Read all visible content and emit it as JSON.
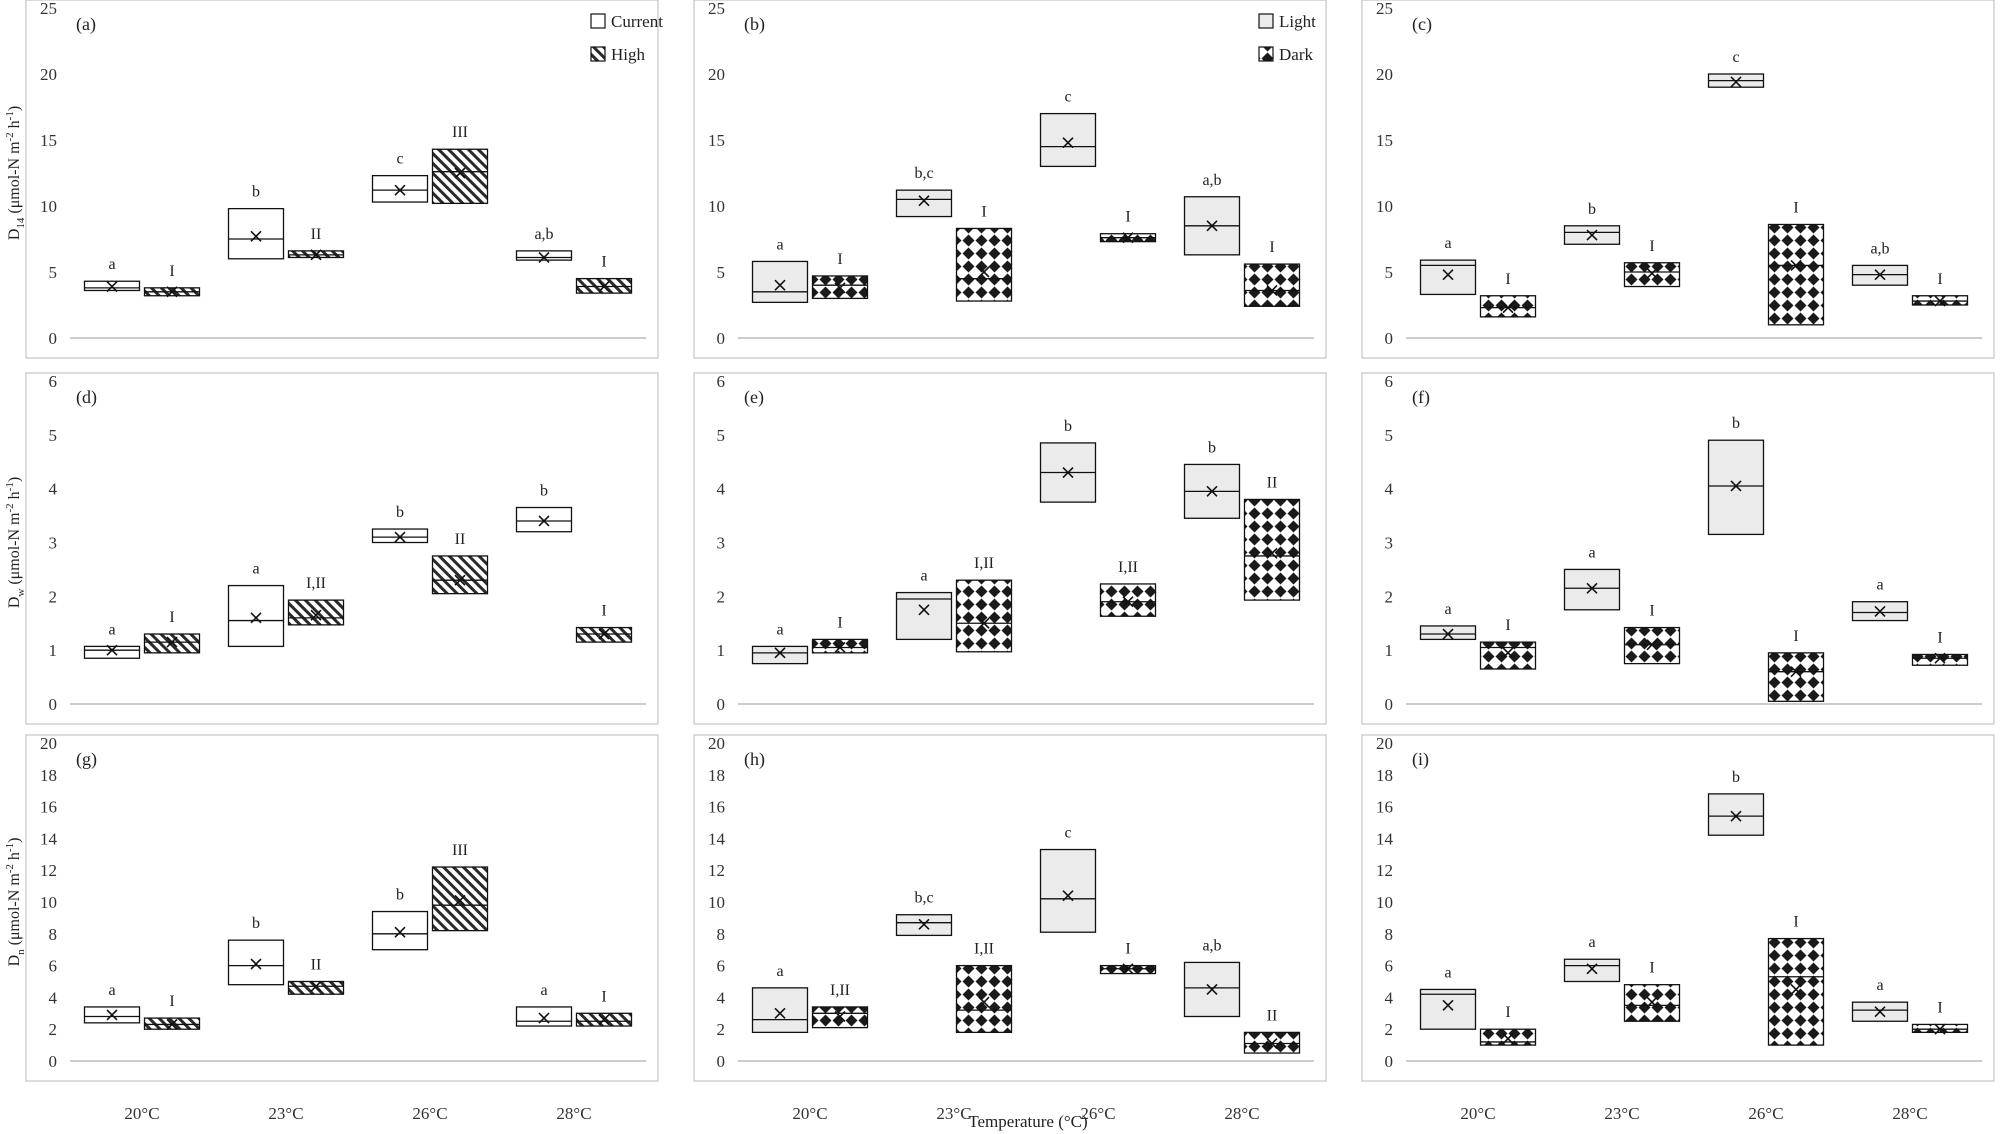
{
  "figure": {
    "xlabel": "Temperature (°C)",
    "categories": [
      "20°C",
      "23°C",
      "26°C",
      "28°C"
    ],
    "row_ylabels": [
      {
        "main": "D",
        "sub": "14",
        "rest": " (μmol-N m",
        "sup1": "-2",
        "rest2": " h",
        "sup2": "-1",
        "rest3": ")"
      },
      {
        "main": "D",
        "sub": "w",
        "rest": " (μmol-N m",
        "sup1": "-2",
        "rest2": " h",
        "sup2": "-1",
        "rest3": ")"
      },
      {
        "main": "D",
        "sub": "n",
        "rest": " (μmol-N m",
        "sup1": "-2",
        "rest2": " h",
        "sup2": "-1",
        "rest3": ")"
      }
    ],
    "legends": {
      "a": [
        {
          "label": "Current",
          "pattern": "plain"
        },
        {
          "label": "High",
          "pattern": "hatch"
        }
      ],
      "b": [
        {
          "label": "Light",
          "pattern": "light"
        },
        {
          "label": "Dark",
          "pattern": "dark"
        }
      ]
    }
  },
  "chart_data": [
    {
      "panel": "(a)",
      "type": "box",
      "ylim": [
        0,
        25
      ],
      "yticks": [
        0,
        5,
        10,
        15,
        20,
        25
      ],
      "series": [
        {
          "name": "Current",
          "pattern": "plain",
          "boxes": [
            {
              "q1": 3.6,
              "q3": 4.3,
              "med": 3.8,
              "mean": 3.9,
              "letter": "a"
            },
            {
              "q1": 6.0,
              "q3": 9.8,
              "med": 7.5,
              "mean": 7.7,
              "letter": "b"
            },
            {
              "q1": 10.3,
              "q3": 12.3,
              "med": 11.2,
              "mean": 11.2,
              "letter": "c"
            },
            {
              "q1": 5.9,
              "q3": 6.6,
              "med": 6.1,
              "mean": 6.1,
              "letter": "a,b"
            }
          ]
        },
        {
          "name": "High",
          "pattern": "hatch",
          "boxes": [
            {
              "q1": 3.2,
              "q3": 3.8,
              "med": 3.5,
              "mean": 3.5,
              "letter": "I"
            },
            {
              "q1": 6.1,
              "q3": 6.6,
              "med": 6.3,
              "mean": 6.3,
              "letter": "II"
            },
            {
              "q1": 10.2,
              "q3": 14.3,
              "med": 12.6,
              "mean": 12.5,
              "letter": "III"
            },
            {
              "q1": 3.4,
              "q3": 4.5,
              "med": 3.9,
              "mean": 3.9,
              "letter": "I"
            }
          ]
        }
      ]
    },
    {
      "panel": "(b)",
      "type": "box",
      "ylim": [
        0,
        25
      ],
      "yticks": [
        0,
        5,
        10,
        15,
        20,
        25
      ],
      "series": [
        {
          "name": "Light",
          "pattern": "light",
          "boxes": [
            {
              "q1": 2.7,
              "q3": 5.8,
              "med": 3.5,
              "mean": 4.0,
              "letter": "a"
            },
            {
              "q1": 9.2,
              "q3": 11.2,
              "med": 10.5,
              "mean": 10.4,
              "letter": "b,c"
            },
            {
              "q1": 13.0,
              "q3": 17.0,
              "med": 14.5,
              "mean": 14.8,
              "letter": "c"
            },
            {
              "q1": 6.3,
              "q3": 10.7,
              "med": 8.5,
              "mean": 8.5,
              "letter": "a,b"
            }
          ]
        },
        {
          "name": "Dark",
          "pattern": "dark",
          "boxes": [
            {
              "q1": 3.0,
              "q3": 4.7,
              "med": 4.0,
              "mean": 3.8,
              "letter": "I"
            },
            {
              "q1": 2.8,
              "q3": 8.3,
              "med": 4.5,
              "mean": 5.0,
              "letter": "I"
            },
            {
              "q1": 7.3,
              "q3": 7.9,
              "med": 7.6,
              "mean": 7.6,
              "letter": "I"
            },
            {
              "q1": 2.4,
              "q3": 5.6,
              "med": 3.6,
              "mean": 3.6,
              "letter": "I"
            }
          ]
        }
      ]
    },
    {
      "panel": "(c)",
      "type": "box",
      "ylim": [
        0,
        25
      ],
      "yticks": [
        0,
        5,
        10,
        15,
        20,
        25
      ],
      "series": [
        {
          "name": "Light",
          "pattern": "light",
          "boxes": [
            {
              "q1": 3.3,
              "q3": 5.9,
              "med": 5.5,
              "mean": 4.8,
              "letter": "a"
            },
            {
              "q1": 7.1,
              "q3": 8.5,
              "med": 8.0,
              "mean": 7.8,
              "letter": "b"
            },
            {
              "q1": 19.0,
              "q3": 20.0,
              "med": 19.5,
              "mean": 19.4,
              "letter": "c"
            },
            {
              "q1": 4.0,
              "q3": 5.5,
              "med": 4.8,
              "mean": 4.8,
              "letter": "a,b"
            }
          ]
        },
        {
          "name": "Dark",
          "pattern": "dark",
          "boxes": [
            {
              "q1": 1.6,
              "q3": 3.2,
              "med": 2.3,
              "mean": 2.3,
              "letter": "I"
            },
            {
              "q1": 3.9,
              "q3": 5.7,
              "med": 5.0,
              "mean": 4.9,
              "letter": "I"
            },
            {
              "q1": 1.0,
              "q3": 8.6,
              "med": 5.5,
              "mean": 5.5,
              "letter": "I"
            },
            {
              "q1": 2.5,
              "q3": 3.2,
              "med": 2.8,
              "mean": 2.8,
              "letter": "I"
            }
          ]
        }
      ]
    },
    {
      "panel": "(d)",
      "type": "box",
      "ylim": [
        0,
        6
      ],
      "yticks": [
        0,
        1,
        2,
        3,
        4,
        5,
        6
      ],
      "series": [
        {
          "name": "Current",
          "pattern": "plain",
          "boxes": [
            {
              "q1": 0.85,
              "q3": 1.07,
              "med": 1.0,
              "mean": 1.0,
              "letter": "a"
            },
            {
              "q1": 1.07,
              "q3": 2.2,
              "med": 1.55,
              "mean": 1.6,
              "letter": "a"
            },
            {
              "q1": 3.0,
              "q3": 3.25,
              "med": 3.1,
              "mean": 3.1,
              "letter": "b"
            },
            {
              "q1": 3.2,
              "q3": 3.65,
              "med": 3.4,
              "mean": 3.4,
              "letter": "b"
            }
          ]
        },
        {
          "name": "High",
          "pattern": "hatch",
          "boxes": [
            {
              "q1": 0.95,
              "q3": 1.3,
              "med": 1.15,
              "mean": 1.15,
              "letter": "I"
            },
            {
              "q1": 1.47,
              "q3": 1.93,
              "med": 1.6,
              "mean": 1.65,
              "letter": "I,II"
            },
            {
              "q1": 2.05,
              "q3": 2.75,
              "med": 2.3,
              "mean": 2.3,
              "letter": "II"
            },
            {
              "q1": 1.15,
              "q3": 1.42,
              "med": 1.3,
              "mean": 1.3,
              "letter": "I"
            }
          ]
        }
      ]
    },
    {
      "panel": "(e)",
      "type": "box",
      "ylim": [
        0,
        6
      ],
      "yticks": [
        0,
        1,
        2,
        3,
        4,
        5,
        6
      ],
      "series": [
        {
          "name": "Light",
          "pattern": "light",
          "boxes": [
            {
              "q1": 0.75,
              "q3": 1.07,
              "med": 0.95,
              "mean": 0.95,
              "letter": "a"
            },
            {
              "q1": 1.2,
              "q3": 2.07,
              "med": 1.95,
              "mean": 1.75,
              "letter": "a"
            },
            {
              "q1": 3.75,
              "q3": 4.85,
              "med": 4.3,
              "mean": 4.3,
              "letter": "b"
            },
            {
              "q1": 3.45,
              "q3": 4.45,
              "med": 3.95,
              "mean": 3.95,
              "letter": "b"
            }
          ]
        },
        {
          "name": "Dark",
          "pattern": "dark",
          "boxes": [
            {
              "q1": 0.95,
              "q3": 1.2,
              "med": 1.05,
              "mean": 1.05,
              "letter": "I"
            },
            {
              "q1": 0.97,
              "q3": 2.3,
              "med": 1.5,
              "mean": 1.5,
              "letter": "I,II"
            },
            {
              "q1": 1.63,
              "q3": 2.23,
              "med": 1.9,
              "mean": 1.9,
              "letter": "I,II"
            },
            {
              "q1": 1.93,
              "q3": 3.8,
              "med": 2.75,
              "mean": 2.8,
              "letter": "II"
            }
          ]
        }
      ]
    },
    {
      "panel": "(f)",
      "type": "box",
      "ylim": [
        0,
        6
      ],
      "yticks": [
        0,
        1,
        2,
        3,
        4,
        5,
        6
      ],
      "series": [
        {
          "name": "Light",
          "pattern": "light",
          "boxes": [
            {
              "q1": 1.2,
              "q3": 1.45,
              "med": 1.3,
              "mean": 1.3,
              "letter": "a"
            },
            {
              "q1": 1.75,
              "q3": 2.5,
              "med": 2.15,
              "mean": 2.15,
              "letter": "a"
            },
            {
              "q1": 3.15,
              "q3": 4.9,
              "med": 4.05,
              "mean": 4.05,
              "letter": "b"
            },
            {
              "q1": 1.55,
              "q3": 1.9,
              "med": 1.7,
              "mean": 1.72,
              "letter": "a"
            }
          ]
        },
        {
          "name": "Dark",
          "pattern": "dark",
          "boxes": [
            {
              "q1": 0.65,
              "q3": 1.15,
              "med": 1.05,
              "mean": 0.95,
              "letter": "I"
            },
            {
              "q1": 0.75,
              "q3": 1.42,
              "med": 1.1,
              "mean": 1.1,
              "letter": "I"
            },
            {
              "q1": 0.05,
              "q3": 0.95,
              "med": 0.6,
              "mean": 0.6,
              "letter": "I"
            },
            {
              "q1": 0.72,
              "q3": 0.92,
              "med": 0.85,
              "mean": 0.85,
              "letter": "I"
            }
          ]
        }
      ]
    },
    {
      "panel": "(g)",
      "type": "box",
      "ylim": [
        0,
        20
      ],
      "yticks": [
        0,
        2,
        4,
        6,
        8,
        10,
        12,
        14,
        16,
        18,
        20
      ],
      "series": [
        {
          "name": "Current",
          "pattern": "plain",
          "boxes": [
            {
              "q1": 2.4,
              "q3": 3.4,
              "med": 2.8,
              "mean": 2.9,
              "letter": "a"
            },
            {
              "q1": 4.8,
              "q3": 7.6,
              "med": 6.0,
              "mean": 6.1,
              "letter": "b"
            },
            {
              "q1": 7.0,
              "q3": 9.4,
              "med": 8.0,
              "mean": 8.1,
              "letter": "b"
            },
            {
              "q1": 2.2,
              "q3": 3.4,
              "med": 2.5,
              "mean": 2.7,
              "letter": "a"
            }
          ]
        },
        {
          "name": "High",
          "pattern": "hatch",
          "boxes": [
            {
              "q1": 2.0,
              "q3": 2.7,
              "med": 2.3,
              "mean": 2.3,
              "letter": "I"
            },
            {
              "q1": 4.2,
              "q3": 5.0,
              "med": 4.7,
              "mean": 4.7,
              "letter": "II"
            },
            {
              "q1": 8.2,
              "q3": 12.2,
              "med": 9.8,
              "mean": 10.1,
              "letter": "III"
            },
            {
              "q1": 2.2,
              "q3": 3.0,
              "med": 2.5,
              "mean": 2.6,
              "letter": "I"
            }
          ]
        }
      ]
    },
    {
      "panel": "(h)",
      "type": "box",
      "ylim": [
        0,
        20
      ],
      "yticks": [
        0,
        2,
        4,
        6,
        8,
        10,
        12,
        14,
        16,
        18,
        20
      ],
      "series": [
        {
          "name": "Light",
          "pattern": "light",
          "boxes": [
            {
              "q1": 1.8,
              "q3": 4.6,
              "med": 2.6,
              "mean": 3.0,
              "letter": "a"
            },
            {
              "q1": 7.9,
              "q3": 9.2,
              "med": 8.7,
              "mean": 8.6,
              "letter": "b,c"
            },
            {
              "q1": 8.1,
              "q3": 13.3,
              "med": 10.2,
              "mean": 10.4,
              "letter": "c"
            },
            {
              "q1": 2.8,
              "q3": 6.2,
              "med": 4.6,
              "mean": 4.5,
              "letter": "a,b"
            }
          ]
        },
        {
          "name": "Dark",
          "pattern": "dark",
          "boxes": [
            {
              "q1": 2.1,
              "q3": 3.4,
              "med": 3.0,
              "mean": 2.8,
              "letter": "I,II"
            },
            {
              "q1": 1.8,
              "q3": 6.0,
              "med": 3.2,
              "mean": 3.7,
              "letter": "I,II"
            },
            {
              "q1": 5.5,
              "q3": 6.0,
              "med": 5.8,
              "mean": 5.8,
              "letter": "I"
            },
            {
              "q1": 0.5,
              "q3": 1.8,
              "med": 1.1,
              "mean": 1.1,
              "letter": "II"
            }
          ]
        }
      ]
    },
    {
      "panel": "(i)",
      "type": "box",
      "ylim": [
        0,
        20
      ],
      "yticks": [
        0,
        2,
        4,
        6,
        8,
        10,
        12,
        14,
        16,
        18,
        20
      ],
      "series": [
        {
          "name": "Light",
          "pattern": "light",
          "boxes": [
            {
              "q1": 2.0,
              "q3": 4.5,
              "med": 4.2,
              "mean": 3.5,
              "letter": "a"
            },
            {
              "q1": 5.0,
              "q3": 6.4,
              "med": 6.0,
              "mean": 5.8,
              "letter": "a"
            },
            {
              "q1": 14.2,
              "q3": 16.8,
              "med": 15.4,
              "mean": 15.4,
              "letter": "b"
            },
            {
              "q1": 2.5,
              "q3": 3.7,
              "med": 3.2,
              "mean": 3.1,
              "letter": "a"
            }
          ]
        },
        {
          "name": "Dark",
          "pattern": "dark",
          "boxes": [
            {
              "q1": 1.0,
              "q3": 2.0,
              "med": 1.2,
              "mean": 1.4,
              "letter": "I"
            },
            {
              "q1": 2.5,
              "q3": 4.8,
              "med": 3.5,
              "mean": 3.7,
              "letter": "I"
            },
            {
              "q1": 1.0,
              "q3": 7.7,
              "med": 5.3,
              "mean": 4.5,
              "letter": "I"
            },
            {
              "q1": 1.8,
              "q3": 2.3,
              "med": 2.0,
              "mean": 2.0,
              "letter": "I"
            }
          ]
        }
      ]
    }
  ]
}
